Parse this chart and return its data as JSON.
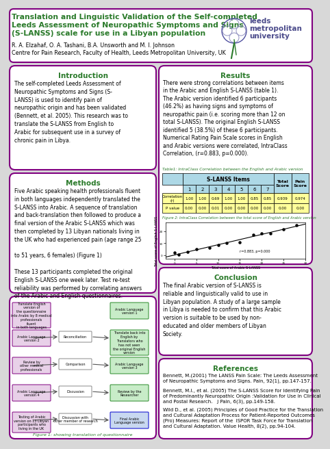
{
  "title_line1": "Translation and Linguistic Validation of the Self-completed",
  "title_line2": "Leeds Assessment of Neuropathic Symptoms and Signs",
  "title_line3": "(S-LANSS) scale for use in a Libyan population",
  "authors": "R. A. Elzahaf, O. A. Tashani, B.A. Unsworth and M. I. Johnson",
  "affiliation": "Centre for Pain Research, Faculty of Health, Leeds Metropolitan University, UK",
  "title_color": "#2a7a2a",
  "section_title_color": "#2a7a2a",
  "border_color": "#800080",
  "intro_title": "Introduction",
  "intro_text": "The self-completed Leeds Assessment of\nNeuropathic Symptoms and Signs (S-\nLANSS) is used to identify pain of\nneuropathic origin and has been validated\n(Bennett, et al. 2005). This research was to\ntranslate the S-LANSS from English to\nArabic for subsequent use in a survey of\nchronic pain in Libya.",
  "methods_title": "Methods",
  "methods_text": "Five Arabic speaking health professionals fluent\nin both languages independently translated the\nS-LANSS into Arabic. A sequence of translation\nand back-translation then followed to produce a\nfinal version of the Arabic S-LANSS which was\nthen completed by 13 Libyan nationals living in\nthe UK who had experienced pain (age range 25\n\nto 51 years, 6 females) (Figure 1)\n\nThese 13 participants completed the original\nEnglish S-LANSS one week later. Test re-test\nreliability was performed by correlating answers\nof the Arabic and English questionnaires.",
  "results_title": "Results",
  "results_text": "There were strong correlations between items\nin the Arabic and English S-LANSS (table 1).\nThe Arabic version identified 6 participants\n(46.2%) as having signs and symptoms of\nneuropathic pain (i.e. scoring more than 12 on\ntotal S-LANSS). The original English S-LANSS\nidentified 5 (38.5%) of these 6 participants.\nNumerical Rating Pain Scale scores in English\nand Arabic versions were correlated, IntraClass\nCorrelation, (r=0.883, p=0.000).",
  "conclusion_title": "Conclusion",
  "conclusion_text": "The final Arabic version of S-LANSS is\nreliable and linguistically valid to use in\nLibyan population. A study of a large sample\nin Libya is needed to confirm that this Arabic\nversion is suitable to be used by non-\neducated and older members of Libyan\nSociety.",
  "references_title": "References",
  "ref1": "Bennett, M.(2001) The LANSS Pain Scale: The Leeds Assessment\nof Neuropathic Symptoms and Signs. Pain, 92(1), pp.147-157.",
  "ref2": "Bennett, M.I., et al. (2005) The S-LANSS Score for Identifying Pain\nof Predominantly Neuropathic Origin :Validation for Use in Clinical\nand Postal Research.   J Pain, 6(3), pp.149-158.",
  "ref3": "Wild D., et al. (2005) Principles of Good Practice for the Translation\nand Cultural Adaptation Process for Patient-Reported Outcomes\n(Pro) Measures: Report of the  ISPOR Task Force for Translation\nand Cultural Adaptation. Value Health, 8(2), pp.94-104.",
  "table_caption": "Table1: IntraClass Correlation between the English and Arabic version",
  "figure2_caption": "Figure 2: IntraClass Correlation between the total score of English and Arabic version",
  "figure1_caption": "Figure 1: showing translation of questionnaire",
  "corr_row": [
    "Correlation\n(r)",
    "1.00",
    "1.00",
    "0.69",
    "1.00",
    "1.00",
    "0.85",
    "0.85",
    "0.939",
    "0.974"
  ],
  "pvalue_row": [
    "P value",
    "0.00",
    "0.00",
    "0.01",
    "0.00",
    "0.00",
    "0.00",
    "0.00",
    "0.00",
    "0.00"
  ],
  "table_header_bg": "#add8e6",
  "table_data_bg": "#ffff99",
  "bg_color": "#d8d8d8"
}
